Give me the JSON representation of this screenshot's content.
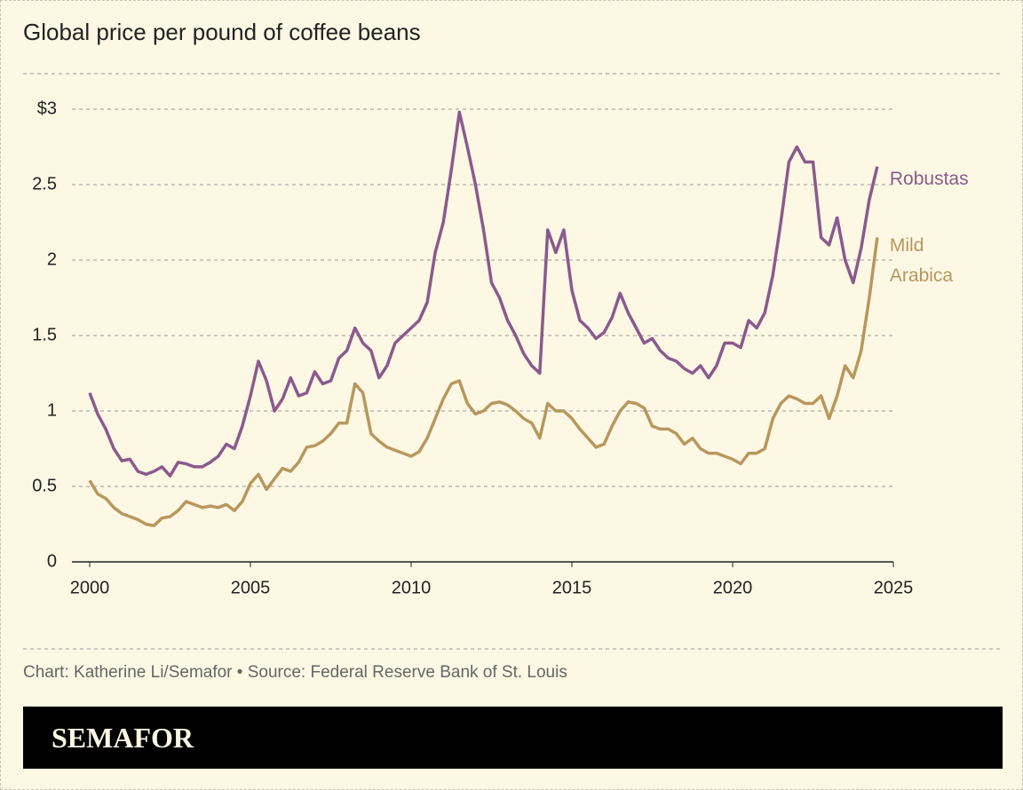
{
  "chart_data": {
    "type": "line",
    "title": "Global price per pound of coffee beans",
    "source": "Chart: Katherine Li/Semafor • Source: Federal Reserve Bank of St. Louis",
    "brand": "SEMAFOR",
    "x": [
      2000,
      2000.25,
      2000.5,
      2000.75,
      2001,
      2001.25,
      2001.5,
      2001.75,
      2002,
      2002.25,
      2002.5,
      2002.75,
      2003,
      2003.25,
      2003.5,
      2003.75,
      2004,
      2004.25,
      2004.5,
      2004.75,
      2005,
      2005.25,
      2005.5,
      2005.75,
      2006,
      2006.25,
      2006.5,
      2006.75,
      2007,
      2007.25,
      2007.5,
      2007.75,
      2008,
      2008.25,
      2008.5,
      2008.75,
      2009,
      2009.25,
      2009.5,
      2009.75,
      2010,
      2010.25,
      2010.5,
      2010.75,
      2011,
      2011.25,
      2011.5,
      2011.75,
      2012,
      2012.25,
      2012.5,
      2012.75,
      2013,
      2013.25,
      2013.5,
      2013.75,
      2014,
      2014.25,
      2014.5,
      2014.75,
      2015,
      2015.25,
      2015.5,
      2015.75,
      2016,
      2016.25,
      2016.5,
      2016.75,
      2017,
      2017.25,
      2017.5,
      2017.75,
      2018,
      2018.25,
      2018.5,
      2018.75,
      2019,
      2019.25,
      2019.5,
      2019.75,
      2020,
      2020.25,
      2020.5,
      2020.75,
      2021,
      2021.25,
      2021.5,
      2021.75,
      2022,
      2022.25,
      2022.5,
      2022.75,
      2023,
      2023.25,
      2023.5,
      2023.75,
      2024,
      2024.25,
      2024.5
    ],
    "series": [
      {
        "name": "Robustas",
        "color": "#8a5a8e",
        "values": [
          1.12,
          0.98,
          0.88,
          0.75,
          0.67,
          0.68,
          0.6,
          0.58,
          0.6,
          0.63,
          0.57,
          0.66,
          0.65,
          0.63,
          0.63,
          0.66,
          0.7,
          0.78,
          0.75,
          0.9,
          1.1,
          1.33,
          1.2,
          1.0,
          1.08,
          1.22,
          1.1,
          1.12,
          1.26,
          1.18,
          1.2,
          1.35,
          1.4,
          1.55,
          1.45,
          1.4,
          1.22,
          1.3,
          1.45,
          1.5,
          1.55,
          1.6,
          1.72,
          2.05,
          2.25,
          2.6,
          2.98,
          2.75,
          2.5,
          2.2,
          1.85,
          1.75,
          1.6,
          1.5,
          1.38,
          1.3,
          1.25,
          2.2,
          2.05,
          2.2,
          1.8,
          1.6,
          1.55,
          1.48,
          1.52,
          1.62,
          1.78,
          1.65,
          1.55,
          1.45,
          1.48,
          1.4,
          1.35,
          1.33,
          1.28,
          1.25,
          1.3,
          1.22,
          1.3,
          1.45,
          1.45,
          1.42,
          1.6,
          1.55,
          1.65,
          1.9,
          2.25,
          2.65,
          2.75,
          2.65,
          2.65,
          2.15,
          2.1,
          2.28,
          2.0,
          1.85,
          2.08,
          2.4,
          2.62
        ]
      },
      {
        "name": "Mild Arabica",
        "color": "#b8975e",
        "values": [
          0.54,
          0.45,
          0.42,
          0.36,
          0.32,
          0.3,
          0.28,
          0.25,
          0.24,
          0.29,
          0.3,
          0.34,
          0.4,
          0.38,
          0.36,
          0.37,
          0.36,
          0.38,
          0.34,
          0.4,
          0.52,
          0.58,
          0.48,
          0.55,
          0.62,
          0.6,
          0.66,
          0.76,
          0.77,
          0.8,
          0.85,
          0.92,
          0.92,
          1.18,
          1.12,
          0.85,
          0.8,
          0.76,
          0.74,
          0.72,
          0.7,
          0.73,
          0.82,
          0.95,
          1.08,
          1.18,
          1.2,
          1.05,
          0.98,
          1.0,
          1.05,
          1.06,
          1.04,
          1.0,
          0.95,
          0.92,
          0.82,
          1.05,
          1.0,
          1.0,
          0.95,
          0.88,
          0.82,
          0.76,
          0.78,
          0.9,
          1.0,
          1.06,
          1.05,
          1.02,
          0.9,
          0.88,
          0.88,
          0.85,
          0.78,
          0.82,
          0.75,
          0.72,
          0.72,
          0.7,
          0.68,
          0.65,
          0.72,
          0.72,
          0.75,
          0.95,
          1.05,
          1.1,
          1.08,
          1.05,
          1.05,
          1.1,
          0.95,
          1.1,
          1.3,
          1.22,
          1.4,
          1.75,
          2.15
        ]
      }
    ],
    "xlim": [
      2000,
      2025
    ],
    "xticks": [
      2000,
      2005,
      2010,
      2015,
      2020,
      2025
    ],
    "ylim": [
      0,
      3
    ],
    "yticks": [
      0,
      0.5,
      1,
      1.5,
      2,
      2.5,
      {
        "value": 3,
        "label": "$3"
      }
    ],
    "grid": true
  }
}
